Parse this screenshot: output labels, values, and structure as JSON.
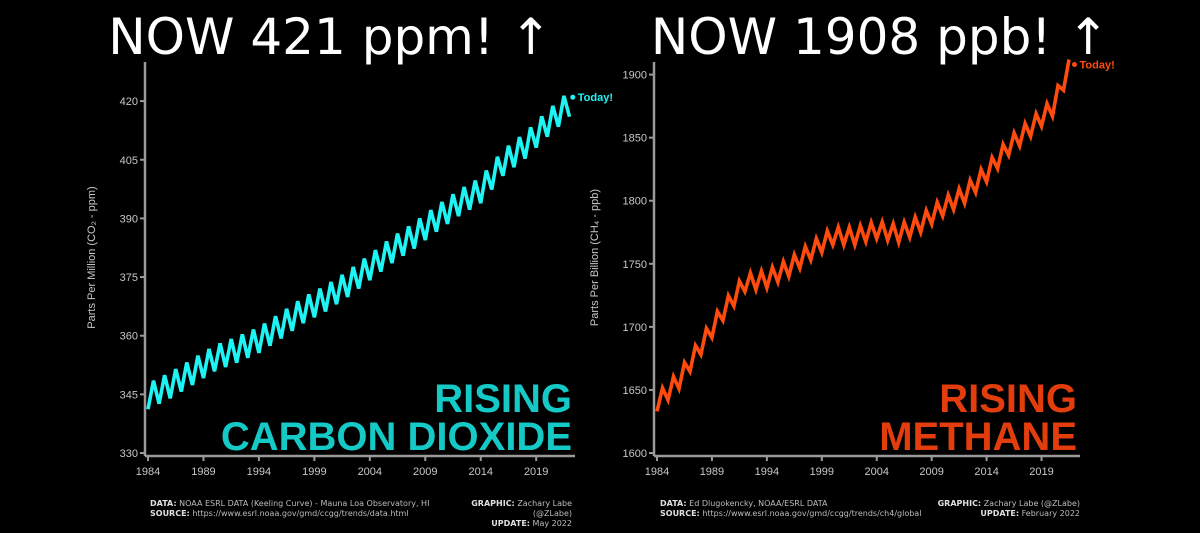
{
  "headlines": {
    "left": "NOW 421 ppm! ↑",
    "right": "NOW 1908 ppb! ↑"
  },
  "footers": {
    "left": {
      "data_label": "DATA:",
      "data_text": "NOAA ESRL DATA (Keeling Curve) - Mauna Loa Observatory, HI",
      "source_label": "SOURCE:",
      "source_text": "https://www.esrl.noaa.gov/gmd/ccgg/trends/data.html",
      "graphic_label": "GRAPHIC:",
      "graphic_text": "Zachary Labe (@ZLabe)",
      "update_label": "UPDATE:",
      "update_text": "May 2022"
    },
    "right": {
      "data_label": "DATA:",
      "data_text": "Ed Dlugokencky, NOAA/ESRL DATA",
      "source_label": "SOURCE:",
      "source_text": "https://www.esrl.noaa.gov/gmd/ccgg/trends/ch4/global",
      "graphic_label": "GRAPHIC:",
      "graphic_text": "Zachary Labe (@ZLabe)",
      "update_label": "UPDATE:",
      "update_text": "February 2022"
    }
  },
  "chart_data": [
    {
      "type": "line",
      "color": "#1ff4f4",
      "ylabel": "Parts Per Million (CO₂ - ppm)",
      "ylim": [
        330,
        430
      ],
      "yticks": [
        330,
        345,
        360,
        375,
        390,
        405,
        420
      ],
      "xlim": [
        1984,
        2022.5
      ],
      "xticks": [
        1984,
        1989,
        1994,
        1999,
        2004,
        2009,
        2014,
        2019
      ],
      "annotation": "Today!",
      "big_label": [
        "RISING",
        "CARBON DIOXIDE"
      ],
      "big_label_color": "#14c9c6",
      "seasonal_amplitude": 3.3,
      "series": [
        {
          "x": [
            1984.0,
            1986.0,
            1988.0,
            1990.0,
            1992.0,
            1994.0,
            1996.0,
            1998.0,
            2000.0,
            2002.0,
            2004.0,
            2006.0,
            2008.0,
            2010.0,
            2012.0,
            2014.0,
            2016.0,
            2018.0,
            2020.0,
            2022.0
          ],
          "y": [
            344.5,
            347.3,
            350.7,
            354.2,
            356.4,
            358.9,
            362.6,
            366.5,
            369.5,
            373.2,
            377.5,
            381.9,
            385.6,
            389.9,
            393.9,
            397.2,
            404.2,
            408.6,
            414.2,
            419.3
          ]
        }
      ],
      "today_point": {
        "x": 2022.3,
        "y": 421
      }
    },
    {
      "type": "line",
      "color": "#ff4b0e",
      "ylabel": "Parts Per Billion (CH₄ - ppb)",
      "ylim": [
        1600,
        1910
      ],
      "yticks": [
        1600,
        1650,
        1700,
        1750,
        1800,
        1850,
        1900
      ],
      "xlim": [
        1984,
        2022.5
      ],
      "xticks": [
        1984,
        1989,
        1994,
        1999,
        2004,
        2009,
        2014,
        2019
      ],
      "annotation": "Today!",
      "big_label": [
        "RISING",
        "METHANE"
      ],
      "big_label_color": "#e33d0d",
      "seasonal_amplitude": 7,
      "series": [
        {
          "x": [
            1984.0,
            1986.0,
            1988.0,
            1990.0,
            1992.0,
            1994.0,
            1996.0,
            1998.0,
            2000.0,
            2002.0,
            2004.0,
            2006.0,
            2008.0,
            2010.0,
            2012.0,
            2014.0,
            2016.0,
            2018.0,
            2020.0,
            2021.5
          ],
          "y": [
            1640,
            1658,
            1685,
            1712,
            1735,
            1738,
            1747,
            1760,
            1772,
            1772,
            1777,
            1774,
            1782,
            1795,
            1805,
            1822,
            1843,
            1858,
            1874,
            1905
          ]
        }
      ],
      "today_point": {
        "x": 2022.0,
        "y": 1908
      }
    }
  ]
}
